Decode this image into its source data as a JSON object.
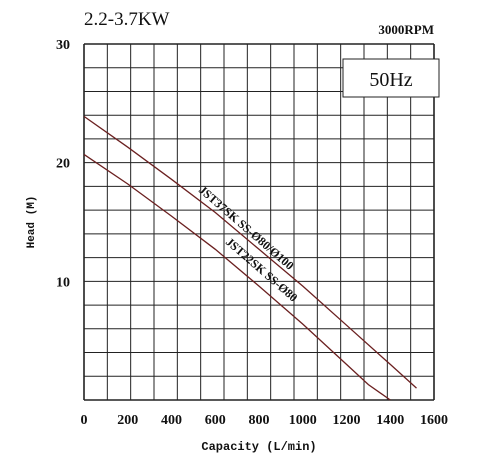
{
  "chart_data": {
    "type": "line",
    "title": "2.2-3.7KW",
    "subtitle": "3000RPM",
    "annotation": "50Hz",
    "xlabel": "Capacity (L/min)",
    "ylabel": "Head (M)",
    "xlim": [
      0,
      1600
    ],
    "ylim": [
      0,
      30
    ],
    "x_ticks": [
      0,
      200,
      400,
      600,
      800,
      1000,
      1200,
      1400,
      1600
    ],
    "y_ticks": [
      10,
      20,
      30
    ],
    "grid": true,
    "series": [
      {
        "name": "JST37SK SS-Ø80/Ø100",
        "color": "#6b2020",
        "x": [
          0,
          200,
          400,
          600,
          800,
          1000,
          1200,
          1400,
          1520
        ],
        "y": [
          23.9,
          21.3,
          18.6,
          15.8,
          12.7,
          9.6,
          6.3,
          3.0,
          1.0
        ]
      },
      {
        "name": "JST22SK SS-Ø80",
        "color": "#6b2020",
        "x": [
          0,
          200,
          400,
          600,
          800,
          1000,
          1200,
          1300,
          1400
        ],
        "y": [
          20.7,
          18.2,
          15.5,
          12.7,
          9.6,
          6.4,
          3.0,
          1.3,
          0
        ]
      }
    ]
  }
}
